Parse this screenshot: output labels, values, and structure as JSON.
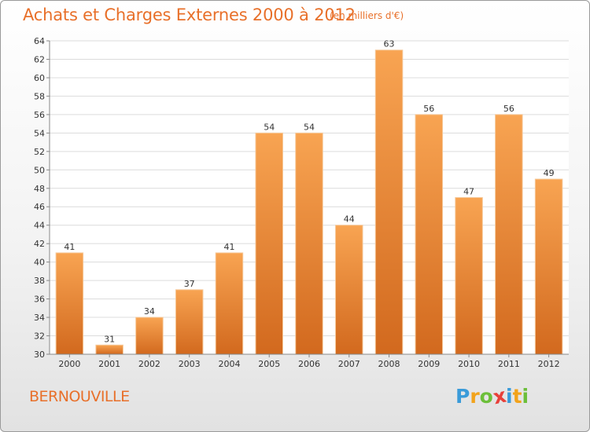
{
  "chart_data": {
    "type": "bar",
    "title": "Achats et Charges Externes 2000 à 2012",
    "subtitle": "(en milliers d'€)",
    "categories": [
      "2000",
      "2001",
      "2002",
      "2003",
      "2004",
      "2005",
      "2006",
      "2007",
      "2008",
      "2009",
      "2010",
      "2011",
      "2012"
    ],
    "values": [
      41,
      31,
      34,
      37,
      41,
      54,
      54,
      44,
      63,
      56,
      47,
      56,
      49
    ],
    "ylim": [
      30,
      64
    ],
    "yticks": [
      30,
      32,
      34,
      36,
      38,
      40,
      42,
      44,
      46,
      48,
      50,
      52,
      54,
      56,
      58,
      60,
      62,
      64
    ],
    "grid": true,
    "xlabel": "",
    "ylabel": "",
    "bar_color_top": "#f8a452",
    "bar_color_bottom": "#d2691e"
  },
  "footer": {
    "commune": "BERNOUVILLE",
    "logo_letters": [
      "P",
      "r",
      "o",
      "x",
      "i",
      "t",
      "i"
    ],
    "logo_colors": [
      "#3a9bd9",
      "#f2a31b",
      "#6cbf3a",
      "#e8403a",
      "#3a9bd9",
      "#f2a31b",
      "#6cbf3a"
    ]
  }
}
